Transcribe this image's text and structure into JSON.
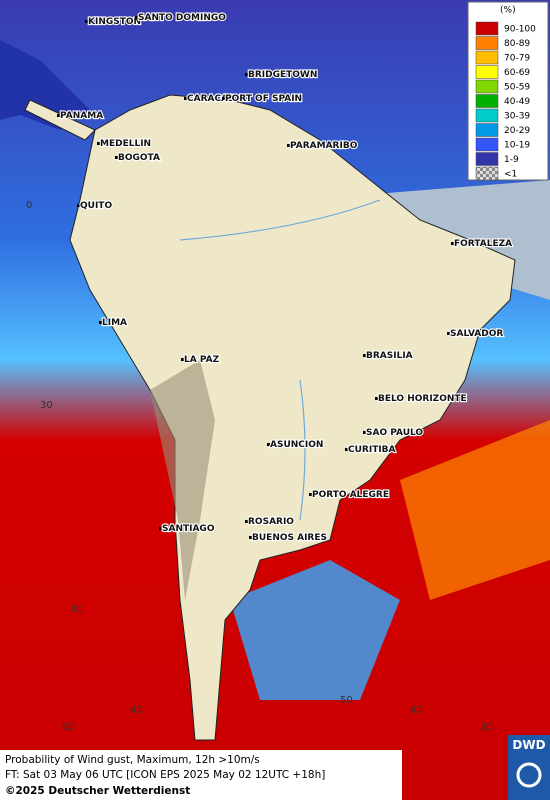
{
  "legend": {
    "title": "(%)",
    "entries": [
      {
        "label": "90-100",
        "color": "#cc0000"
      },
      {
        "label": "80-89",
        "color": "#ff7f00"
      },
      {
        "label": "70-79",
        "color": "#ffbf00"
      },
      {
        "label": "60-69",
        "color": "#ffff00"
      },
      {
        "label": "50-59",
        "color": "#7fd600"
      },
      {
        "label": "40-49",
        "color": "#00b000"
      },
      {
        "label": "30-39",
        "color": "#00cccc"
      },
      {
        "label": "20-29",
        "color": "#0099e6"
      },
      {
        "label": "10-19",
        "color": "#3355ff"
      },
      {
        "label": "1-9",
        "color": "#3333aa"
      },
      {
        "label": "<1",
        "color": "#999999"
      }
    ]
  },
  "cities": [
    "KINGSTON",
    "SANTO DOMINGO",
    "BRIDGETOWN",
    "CARACAS",
    "PORT OF SPAIN",
    "PANAMA",
    "MEDELLIN",
    "BOGOTA",
    "PARAMARIBO",
    "QUITO",
    "FORTALEZA",
    "LIMA",
    "SALVADOR",
    "LA PAZ",
    "BRASILIA",
    "BELO HORIZONTE",
    "ASUNCION",
    "SAO PAULO",
    "CURITIBA",
    "PORTO ALEGRE",
    "ROSARIO",
    "BUENOS AIRES",
    "SANTIAGO"
  ],
  "grid_labels": [
    "0",
    "30",
    "40",
    "60",
    "40",
    "50",
    "40",
    "30"
  ],
  "footer": {
    "line1": "Probability of Wind gust, Maximum, 12h >10m/s",
    "line2": "FT: Sat 03 May 06 UTC [ICON EPS 2025 May 02 12UTC +18h]",
    "line3": "©2025 Deutscher Wetterdienst"
  },
  "logo": "DWD"
}
